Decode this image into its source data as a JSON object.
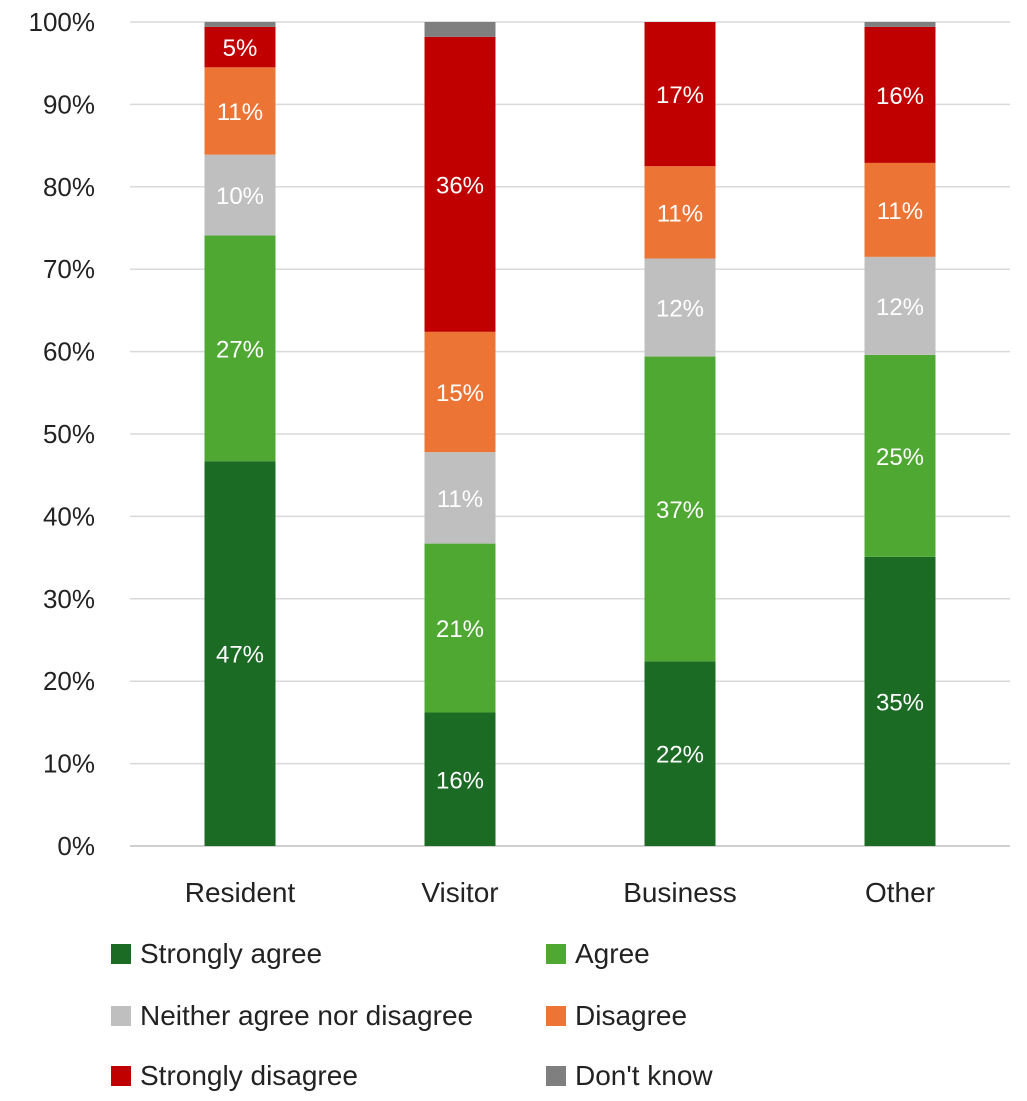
{
  "chart_data": {
    "type": "bar",
    "stacked": true,
    "normalized": true,
    "categories": [
      "Resident",
      "Visitor",
      "Business",
      "Other"
    ],
    "series": [
      {
        "name": "Strongly agree",
        "color": "#1b6b25",
        "values": [
          46.7,
          16.2,
          22.4,
          35.1
        ],
        "labels": [
          "47%",
          "16%",
          "22%",
          "35%"
        ]
      },
      {
        "name": "Agree",
        "color": "#4fa832",
        "values": [
          27.4,
          20.5,
          37.0,
          24.5
        ],
        "labels": [
          "27%",
          "21%",
          "37%",
          "25%"
        ]
      },
      {
        "name": "Neither agree nor disagree",
        "color": "#bfbfbf",
        "values": [
          9.8,
          11.1,
          11.9,
          11.9
        ],
        "labels": [
          "10%",
          "11%",
          "12%",
          "12%"
        ]
      },
      {
        "name": "Disagree",
        "color": "#ec7434",
        "values": [
          10.6,
          14.6,
          11.2,
          11.4
        ],
        "labels": [
          "11%",
          "15%",
          "11%",
          "11%"
        ]
      },
      {
        "name": "Strongly disagree",
        "color": "#c00000",
        "values": [
          4.9,
          35.8,
          17.5,
          16.5
        ],
        "labels": [
          "5%",
          "36%",
          "17%",
          "16%"
        ]
      },
      {
        "name": "Don't know",
        "color": "#7f7f7f",
        "values": [
          0.6,
          1.8,
          0.0,
          0.6
        ],
        "labels": [
          "",
          "",
          "",
          ""
        ]
      }
    ],
    "ylim": [
      0,
      100
    ],
    "yticks": [
      "0%",
      "10%",
      "20%",
      "30%",
      "40%",
      "50%",
      "60%",
      "70%",
      "80%",
      "90%",
      "100%"
    ],
    "grid": true,
    "legend_position": "bottom",
    "title": "",
    "xlabel": "",
    "ylabel": ""
  }
}
